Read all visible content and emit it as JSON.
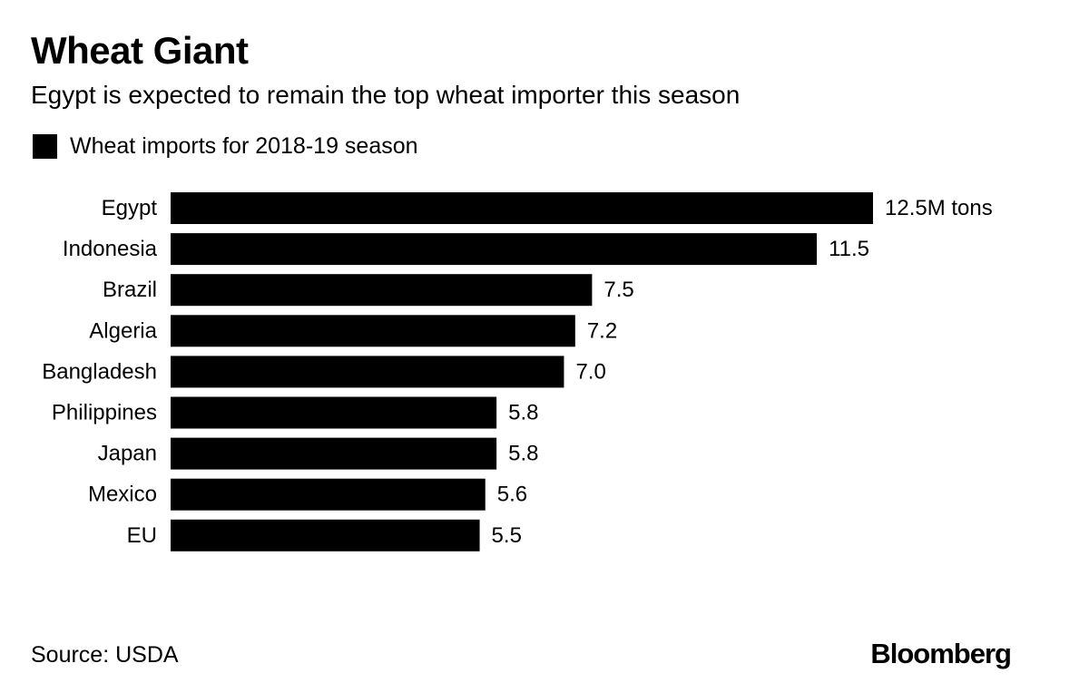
{
  "header": {
    "title": "Wheat Giant",
    "subtitle": "Egypt is expected to remain the top wheat importer this season"
  },
  "legend": {
    "label": "Wheat imports for 2018-19 season",
    "color": "#000000"
  },
  "footer": {
    "source": "Source: USDA",
    "logo": "Bloomberg"
  },
  "chart_data": {
    "type": "bar",
    "orientation": "horizontal",
    "title": "Wheat Giant",
    "subtitle": "Egypt is expected to remain the top wheat importer this season",
    "categories": [
      "Egypt",
      "Indonesia",
      "Brazil",
      "Algeria",
      "Bangladesh",
      "Philippines",
      "Japan",
      "Mexico",
      "EU"
    ],
    "series": [
      {
        "name": "Wheat imports for 2018-19 season",
        "color": "#000000",
        "values": [
          12.5,
          11.5,
          7.5,
          7.2,
          7.0,
          5.8,
          5.8,
          5.6,
          5.5
        ],
        "labels": [
          "12.5M tons",
          "11.5",
          "7.5",
          "7.2",
          "7.0",
          "5.8",
          "5.8",
          "5.6",
          "5.5"
        ]
      }
    ],
    "xlim": [
      0,
      12.5
    ],
    "grid": false,
    "legend_position": "top-left"
  }
}
